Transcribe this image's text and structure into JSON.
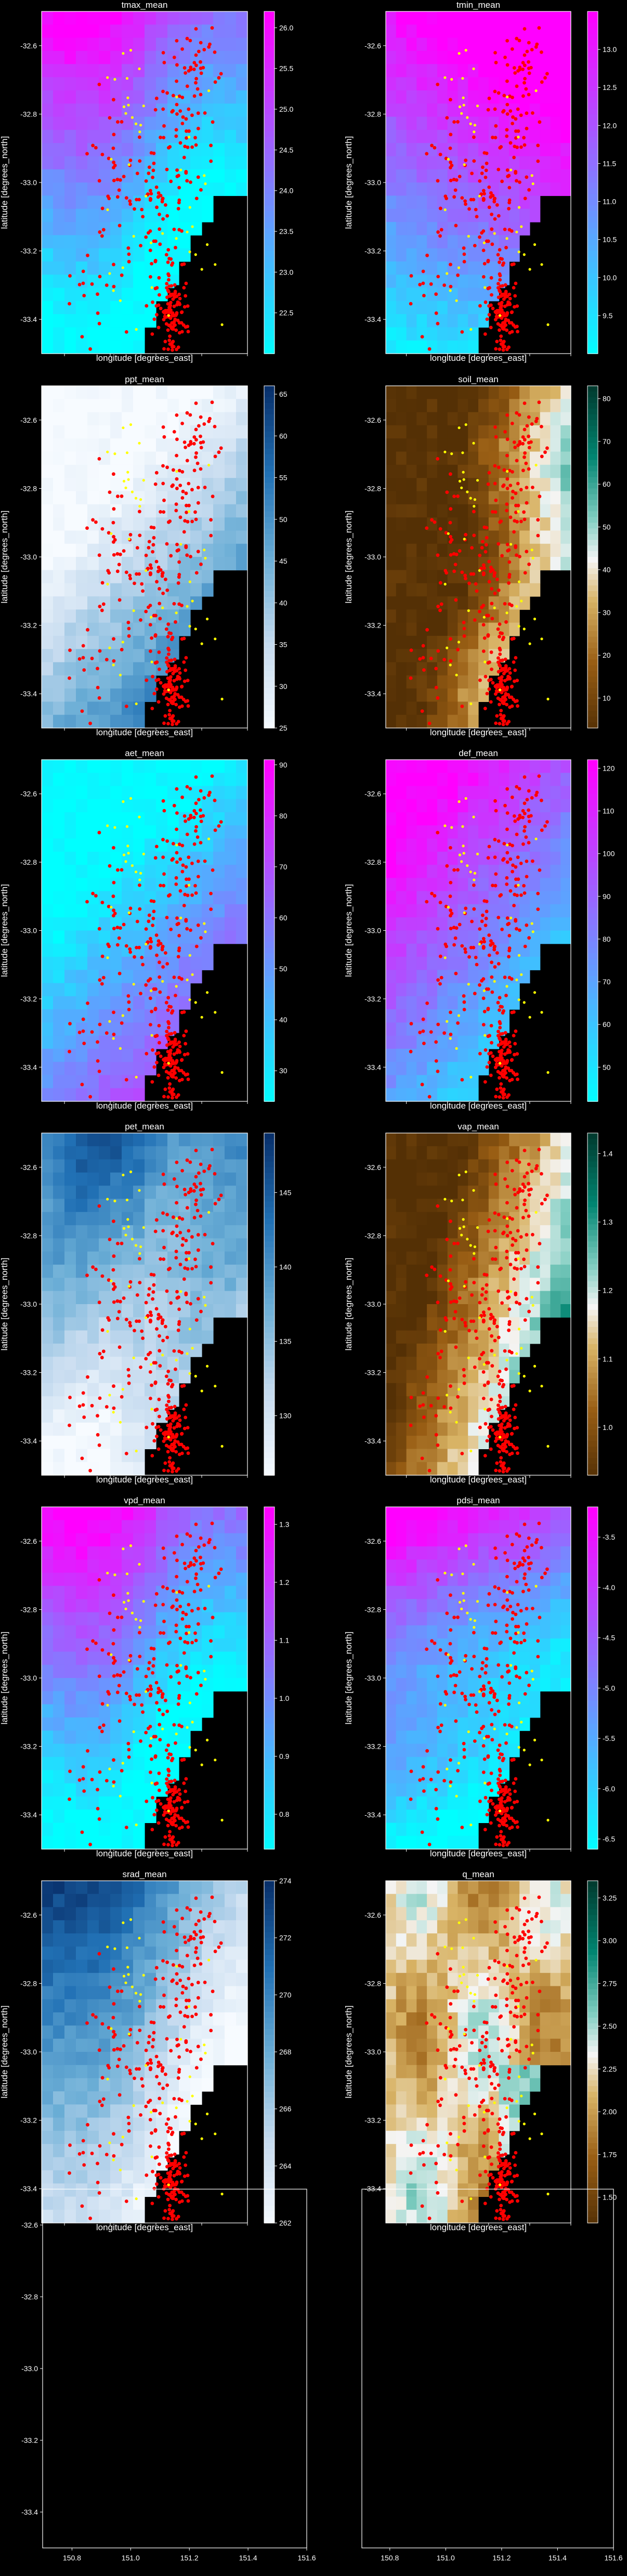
{
  "figure": {
    "background": "#000000",
    "text_color": "#ffffff"
  },
  "chart_data": [
    {
      "type": "heatmap",
      "title": "tmax_mean",
      "xlabel": "longitude [degrees_east]",
      "ylabel": "latitude [degrees_north]",
      "colormap": "cool",
      "clim": [
        22.0,
        26.2
      ],
      "colorbar_ticks": [
        "22.5",
        "23.0",
        "23.5",
        "24.0",
        "24.5",
        "25.0",
        "25.5",
        "26.0"
      ],
      "x_ticks": [
        "150.8",
        "151.0",
        "151.2",
        "151.4",
        "151.6"
      ],
      "y_ticks": [
        "-32.6",
        "-32.8",
        "-33.0",
        "-33.2",
        "-33.4"
      ],
      "xlim": [
        150.7,
        151.6
      ],
      "ylim": [
        -33.5,
        -32.5
      ],
      "field": "hot_north",
      "cool_to": "southeast"
    },
    {
      "type": "heatmap",
      "title": "tmin_mean",
      "xlabel": "longitude [degrees_east]",
      "ylabel": "latitude [degrees_north]",
      "colormap": "cool",
      "clim": [
        9.0,
        13.5
      ],
      "colorbar_ticks": [
        "9.5",
        "10.0",
        "10.5",
        "11.0",
        "11.5",
        "12.0",
        "12.5",
        "13.0"
      ],
      "x_ticks": [
        "150.8",
        "151.0",
        "151.2",
        "151.4",
        "151.6"
      ],
      "y_ticks": [
        "-32.6",
        "-32.8",
        "-33.0",
        "-33.2",
        "-33.4"
      ],
      "xlim": [
        150.7,
        151.6
      ],
      "ylim": [
        -33.5,
        -32.5
      ],
      "field": "hot_northeast"
    },
    {
      "type": "heatmap",
      "title": "ppt_mean",
      "xlabel": "longitude [degrees_east]",
      "ylabel": "latitude [degrees_north]",
      "colormap": "Blues",
      "clim": [
        25,
        66
      ],
      "colorbar_ticks": [
        "25",
        "30",
        "35",
        "40",
        "45",
        "50",
        "55",
        "60",
        "65"
      ],
      "x_ticks": [
        "150.8",
        "151.0",
        "151.2",
        "151.4",
        "151.6"
      ],
      "y_ticks": [
        "-32.6",
        "-32.8",
        "-33.0",
        "-33.2",
        "-33.4"
      ],
      "xlim": [
        150.7,
        151.6
      ],
      "ylim": [
        -33.5,
        -32.5
      ],
      "field": "wet_southeast"
    },
    {
      "type": "heatmap",
      "title": "soil_mean",
      "xlabel": "longitude [degrees_east]",
      "ylabel": "latitude [degrees_north]",
      "colormap": "BrBG",
      "clim": [
        3,
        83
      ],
      "colorbar_ticks": [
        "10",
        "20",
        "30",
        "40",
        "50",
        "60",
        "70",
        "80"
      ],
      "x_ticks": [
        "150.8",
        "151.0",
        "151.2",
        "151.4",
        "151.6"
      ],
      "y_ticks": [
        "-32.6",
        "-32.8",
        "-33.0",
        "-33.2",
        "-33.4"
      ],
      "xlim": [
        150.7,
        151.6
      ],
      "ylim": [
        -33.5,
        -32.5
      ],
      "field": "wet_east"
    },
    {
      "type": "heatmap",
      "title": "aet_mean",
      "xlabel": "longitude [degrees_east]",
      "ylabel": "latitude [degrees_north]",
      "colormap": "cool",
      "clim": [
        24,
        91
      ],
      "colorbar_ticks": [
        "30",
        "40",
        "50",
        "60",
        "70",
        "80",
        "90"
      ],
      "x_ticks": [
        "150.8",
        "151.0",
        "151.2",
        "151.4",
        "151.6"
      ],
      "y_ticks": [
        "-32.6",
        "-32.8",
        "-33.0",
        "-33.2",
        "-33.4"
      ],
      "xlim": [
        150.7,
        151.6
      ],
      "ylim": [
        -33.5,
        -32.5
      ],
      "field": "wet_southeast"
    },
    {
      "type": "heatmap",
      "title": "def_mean",
      "xlabel": "longitude [degrees_east]",
      "ylabel": "latitude [degrees_north]",
      "colormap": "cool",
      "clim": [
        42,
        122
      ],
      "colorbar_ticks": [
        "50",
        "60",
        "70",
        "80",
        "90",
        "100",
        "110",
        "120"
      ],
      "x_ticks": [
        "150.8",
        "151.0",
        "151.2",
        "151.4",
        "151.6"
      ],
      "y_ticks": [
        "-32.6",
        "-32.8",
        "-33.0",
        "-33.2",
        "-33.4"
      ],
      "xlim": [
        150.7,
        151.6
      ],
      "ylim": [
        -33.5,
        -32.5
      ],
      "field": "dry_northwest"
    },
    {
      "type": "heatmap",
      "title": "pet_mean",
      "xlabel": "longitude [degrees_east]",
      "ylabel": "latitude [degrees_north]",
      "colormap": "Blues",
      "clim": [
        126,
        149
      ],
      "colorbar_ticks": [
        "130",
        "135",
        "140",
        "145"
      ],
      "x_ticks": [
        "150.8",
        "151.0",
        "151.2",
        "151.4",
        "151.6"
      ],
      "y_ticks": [
        "-32.6",
        "-32.8",
        "-33.0",
        "-33.2",
        "-33.4"
      ],
      "xlim": [
        150.7,
        151.6
      ],
      "ylim": [
        -33.5,
        -32.5
      ],
      "field": "pet"
    },
    {
      "type": "heatmap",
      "title": "vap_mean",
      "xlabel": "longitude [degrees_east]",
      "ylabel": "latitude [degrees_north]",
      "colormap": "BrBG",
      "clim": [
        0.93,
        1.43
      ],
      "colorbar_ticks": [
        "1.0",
        "1.1",
        "1.2",
        "1.3",
        "1.4"
      ],
      "x_ticks": [
        "150.8",
        "151.0",
        "151.2",
        "151.4",
        "151.6"
      ],
      "y_ticks": [
        "-32.6",
        "-32.8",
        "-33.0",
        "-33.2",
        "-33.4"
      ],
      "xlim": [
        150.7,
        151.6
      ],
      "ylim": [
        -33.5,
        -32.5
      ],
      "field": "vap"
    },
    {
      "type": "heatmap",
      "title": "vpd_mean",
      "xlabel": "longitude [degrees_east]",
      "ylabel": "latitude [degrees_north]",
      "colormap": "cool",
      "clim": [
        0.74,
        1.33
      ],
      "colorbar_ticks": [
        "0.8",
        "0.9",
        "1.0",
        "1.1",
        "1.2",
        "1.3"
      ],
      "x_ticks": [
        "150.8",
        "151.0",
        "151.2",
        "151.4",
        "151.6"
      ],
      "y_ticks": [
        "-32.6",
        "-32.8",
        "-33.0",
        "-33.2",
        "-33.4"
      ],
      "xlim": [
        150.7,
        151.6
      ],
      "ylim": [
        -33.5,
        -32.5
      ],
      "field": "hot_north"
    },
    {
      "type": "heatmap",
      "title": "pdsi_mean",
      "xlabel": "longitude [degrees_east]",
      "ylabel": "latitude [degrees_north]",
      "colormap": "cool",
      "clim": [
        -6.6,
        -3.2
      ],
      "colorbar_ticks": [
        "-3.5",
        "-4.0",
        "-4.5",
        "-5.0",
        "-5.5",
        "-6.0",
        "-6.5"
      ],
      "x_ticks": [
        "150.8",
        "151.0",
        "151.2",
        "151.4",
        "151.6"
      ],
      "y_ticks": [
        "-32.6",
        "-32.8",
        "-33.0",
        "-33.2",
        "-33.4"
      ],
      "xlim": [
        150.7,
        151.6
      ],
      "ylim": [
        -33.5,
        -32.5
      ],
      "field": "pdsi"
    },
    {
      "type": "heatmap",
      "title": "srad_mean",
      "xlabel": "longitude [degrees_east]",
      "ylabel": "latitude [degrees_north]",
      "colormap": "Blues",
      "clim": [
        262,
        274
      ],
      "colorbar_ticks": [
        "262",
        "264",
        "266",
        "268",
        "270",
        "272",
        "274"
      ],
      "x_ticks": [
        "150.8",
        "151.0",
        "151.2",
        "151.4",
        "151.6"
      ],
      "y_ticks": [
        "-32.6",
        "-32.8",
        "-33.0",
        "-33.2",
        "-33.4"
      ],
      "xlim": [
        150.7,
        151.6
      ],
      "ylim": [
        -33.5,
        -32.5
      ],
      "field": "srad"
    },
    {
      "type": "heatmap",
      "title": "q_mean",
      "xlabel": "longitude [degrees_east]",
      "ylabel": "latitude [degrees_north]",
      "colormap": "BrBG",
      "clim": [
        1.35,
        3.35
      ],
      "colorbar_ticks": [
        "1.50",
        "1.75",
        "2.00",
        "2.25",
        "2.50",
        "2.75",
        "3.00",
        "3.25"
      ],
      "x_ticks": [
        "150.8",
        "151.0",
        "151.2",
        "151.4",
        "151.6"
      ],
      "y_ticks": [
        "-32.6",
        "-32.8",
        "-33.0",
        "-33.2",
        "-33.4"
      ],
      "xlim": [
        150.7,
        151.6
      ],
      "ylim": [
        -33.5,
        -32.5
      ],
      "field": "q"
    },
    {
      "type": "empty",
      "title": "",
      "x_ticks": [
        "150.8",
        "151.0",
        "151.2",
        "151.4",
        "151.6"
      ],
      "y_ticks": [
        "-32.6",
        "-32.8",
        "-33.0",
        "-33.2",
        "-33.4"
      ],
      "xlim": [
        150.7,
        151.6
      ],
      "ylim": [
        -33.5,
        -32.5
      ]
    },
    {
      "type": "empty",
      "title": "",
      "x_ticks": [
        "150.8",
        "151.0",
        "151.2",
        "151.4",
        "151.6"
      ],
      "y_ticks": [],
      "xlim": [
        150.7,
        151.6
      ],
      "ylim": [
        -33.5,
        -32.5
      ]
    }
  ],
  "overlay": {
    "points_color": "#ff0000",
    "highlight_color": "#ffff00",
    "mask_color": "#000000"
  }
}
